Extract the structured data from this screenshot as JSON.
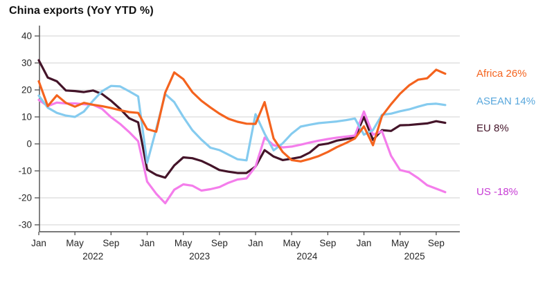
{
  "title": "China exports (YoY YTD %)",
  "chart_data": {
    "type": "line",
    "title": "China exports (YoY YTD %)",
    "x_unit": "month",
    "x_start": "2022-01",
    "x_end": "2025-10",
    "n_points": 46,
    "grid": "horizontal",
    "legend_position": "right-of-plot",
    "ylim": [
      -33,
      44
    ],
    "y_ticks": [
      40,
      30,
      20,
      10,
      0,
      -10,
      -20,
      -30
    ],
    "x_ticks": [
      {
        "m": 0,
        "label": "Jan"
      },
      {
        "m": 4,
        "label": "May"
      },
      {
        "m": 8,
        "label": "Sep"
      },
      {
        "m": 12,
        "label": "Jan"
      },
      {
        "m": 16,
        "label": "May"
      },
      {
        "m": 20,
        "label": "Sep"
      },
      {
        "m": 24,
        "label": "Jan"
      },
      {
        "m": 28,
        "label": "May"
      },
      {
        "m": 32,
        "label": "Sep"
      },
      {
        "m": 36,
        "label": "Jan"
      },
      {
        "m": 40,
        "label": "May"
      },
      {
        "m": 44,
        "label": "Sep"
      }
    ],
    "year_labels": [
      {
        "label": "2022",
        "center_m": 6
      },
      {
        "label": "2023",
        "center_m": 17.8
      },
      {
        "label": "2024",
        "center_m": 29.7
      },
      {
        "label": "2025",
        "center_m": 41.6
      }
    ],
    "series": [
      {
        "name": "Africa",
        "end_label": "Africa 26%",
        "latest_value": 26,
        "color": "#F4631E",
        "label_color": "#F4631E",
        "values": [
          23.2,
          14.0,
          18.0,
          15.2,
          13.8,
          15.2,
          14.5,
          14.0,
          13.3,
          12.5,
          11.8,
          11.5,
          5.5,
          4.5,
          19.0,
          26.5,
          24.0,
          19.2,
          16.0,
          13.5,
          11.2,
          9.3,
          8.2,
          7.5,
          7.4,
          15.5,
          2.0,
          -3.0,
          -6.0,
          -6.5,
          -5.6,
          -4.5,
          -3.0,
          -1.2,
          0.3,
          2.0,
          6.5,
          -0.5,
          10.3,
          14.7,
          18.6,
          21.7,
          23.8,
          24.3,
          27.5,
          26.0
        ]
      },
      {
        "name": "ASEAN",
        "end_label": "ASEAN 14%",
        "latest_value": 14,
        "color": "#85CBEF",
        "label_color": "#58A7DC",
        "values": [
          17.9,
          13.4,
          11.5,
          10.5,
          10.0,
          12.0,
          16.0,
          19.5,
          21.5,
          21.3,
          19.5,
          17.6,
          -7.0,
          5.5,
          18.5,
          15.5,
          10.0,
          5.1,
          1.6,
          -1.4,
          -2.3,
          -4.0,
          -5.7,
          -6.1,
          11.0,
          3.8,
          -2.4,
          0.2,
          3.8,
          6.4,
          7.1,
          7.7,
          8.0,
          8.3,
          8.8,
          9.4,
          3.4,
          5.1,
          10.8,
          11.2,
          12.1,
          12.8,
          13.8,
          14.7,
          14.9,
          14.4
        ]
      },
      {
        "name": "EU",
        "end_label": "EU 8%",
        "latest_value": 8,
        "color": "#441429",
        "label_color": "#441429",
        "values": [
          31.0,
          24.6,
          23.2,
          19.8,
          19.6,
          19.2,
          19.8,
          18.5,
          16.0,
          13.0,
          9.5,
          8.0,
          -9.5,
          -11.5,
          -12.5,
          -8.0,
          -5.0,
          -5.3,
          -6.3,
          -7.9,
          -9.7,
          -10.3,
          -10.8,
          -10.8,
          -8.4,
          -2.3,
          -4.7,
          -6.0,
          -5.5,
          -4.9,
          -3.2,
          -0.4,
          0.1,
          1.2,
          1.8,
          2.3,
          10.0,
          1.5,
          5.1,
          4.8,
          6.9,
          7.0,
          7.3,
          7.6,
          8.4,
          7.8
        ]
      },
      {
        "name": "US",
        "end_label": "US -18%",
        "latest_value": -18,
        "color": "#F47DEB",
        "label_color": "#C73CD5",
        "values": [
          16.3,
          14.0,
          15.3,
          15.0,
          15.0,
          14.7,
          14.5,
          13.0,
          9.9,
          7.4,
          4.4,
          1.0,
          -14.0,
          -18.5,
          -22.0,
          -17.0,
          -15.0,
          -15.5,
          -17.3,
          -16.8,
          -16.0,
          -14.4,
          -13.2,
          -12.8,
          -8.4,
          2.3,
          -0.5,
          -1.3,
          -1.0,
          -0.3,
          0.5,
          1.2,
          1.8,
          2.3,
          2.7,
          3.1,
          12.0,
          3.4,
          4.7,
          -4.4,
          -9.7,
          -10.5,
          -12.7,
          -15.3,
          -16.6,
          -17.9
        ]
      }
    ],
    "style": {
      "grid_color": "#DBDBDB",
      "axis_color": "#4D4D4D",
      "tick_label_color": "#262626",
      "background": "#FFFFFF"
    }
  }
}
